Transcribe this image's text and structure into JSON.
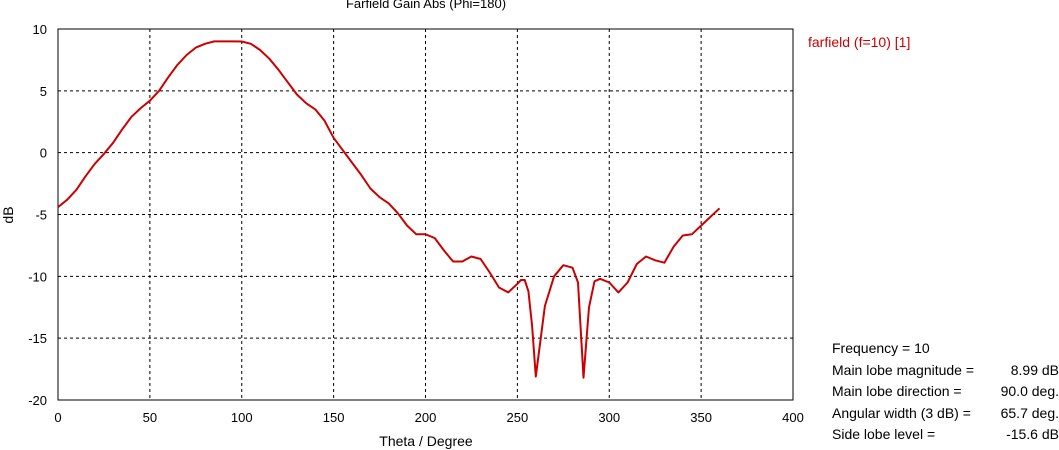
{
  "chart_data": {
    "type": "line",
    "title": "Farfield Gain Abs (Phi=180)",
    "xlabel": "Theta / Degree",
    "ylabel": "dB",
    "xlim": [
      0,
      400
    ],
    "ylim": [
      -20,
      10
    ],
    "x_ticks": [
      0,
      50,
      100,
      150,
      200,
      250,
      300,
      350,
      400
    ],
    "y_ticks": [
      10,
      5,
      0,
      -5,
      -10,
      -15,
      -20
    ],
    "grid": true,
    "legend_position": "top-right",
    "series": [
      {
        "name": "farfield (f=10) [1]",
        "color": "#cc0000",
        "x": [
          0,
          5,
          10,
          15,
          20,
          25,
          30,
          35,
          40,
          45,
          50,
          55,
          60,
          65,
          70,
          75,
          80,
          85,
          90,
          95,
          100,
          105,
          110,
          115,
          120,
          125,
          130,
          135,
          140,
          145,
          150,
          155,
          160,
          165,
          170,
          175,
          180,
          185,
          190,
          195,
          200,
          205,
          210,
          215,
          220,
          225,
          230,
          235,
          240,
          245,
          250,
          252,
          254,
          256,
          258,
          260,
          265,
          270,
          275,
          280,
          283,
          286,
          289,
          292,
          295,
          300,
          305,
          310,
          315,
          320,
          325,
          330,
          335,
          340,
          345,
          350,
          355,
          360
        ],
        "y": [
          -4.4,
          -3.8,
          -3.0,
          -1.9,
          -0.9,
          -0.1,
          0.8,
          1.9,
          2.9,
          3.6,
          4.2,
          5.0,
          6.1,
          7.1,
          7.9,
          8.5,
          8.8,
          9.0,
          9.0,
          9.0,
          8.99,
          8.8,
          8.3,
          7.6,
          6.7,
          5.7,
          4.7,
          4.0,
          3.5,
          2.6,
          1.2,
          0.2,
          -0.8,
          -1.8,
          -2.9,
          -3.6,
          -4.1,
          -4.9,
          -5.9,
          -6.6,
          -6.6,
          -6.9,
          -7.9,
          -8.8,
          -8.8,
          -8.4,
          -8.6,
          -9.7,
          -10.9,
          -11.3,
          -10.6,
          -10.3,
          -10.3,
          -11.2,
          -14.0,
          -18.1,
          -12.4,
          -10.0,
          -9.1,
          -9.3,
          -10.5,
          -18.2,
          -12.5,
          -10.4,
          -10.2,
          -10.5,
          -11.3,
          -10.5,
          -9.0,
          -8.4,
          -8.7,
          -8.9,
          -7.6,
          -6.7,
          -6.6,
          -5.9,
          -5.2,
          -4.5
        ]
      }
    ]
  },
  "info_panel": [
    {
      "label": "Frequency = 10",
      "value": ""
    },
    {
      "label": "Main lobe magnitude =",
      "value": "8.99 dB"
    },
    {
      "label": "Main lobe direction =",
      "value": "90.0 deg."
    },
    {
      "label": "Angular width (3 dB) =",
      "value": "65.7 deg."
    },
    {
      "label": "Side lobe level =",
      "value": "-15.6 dB"
    }
  ]
}
